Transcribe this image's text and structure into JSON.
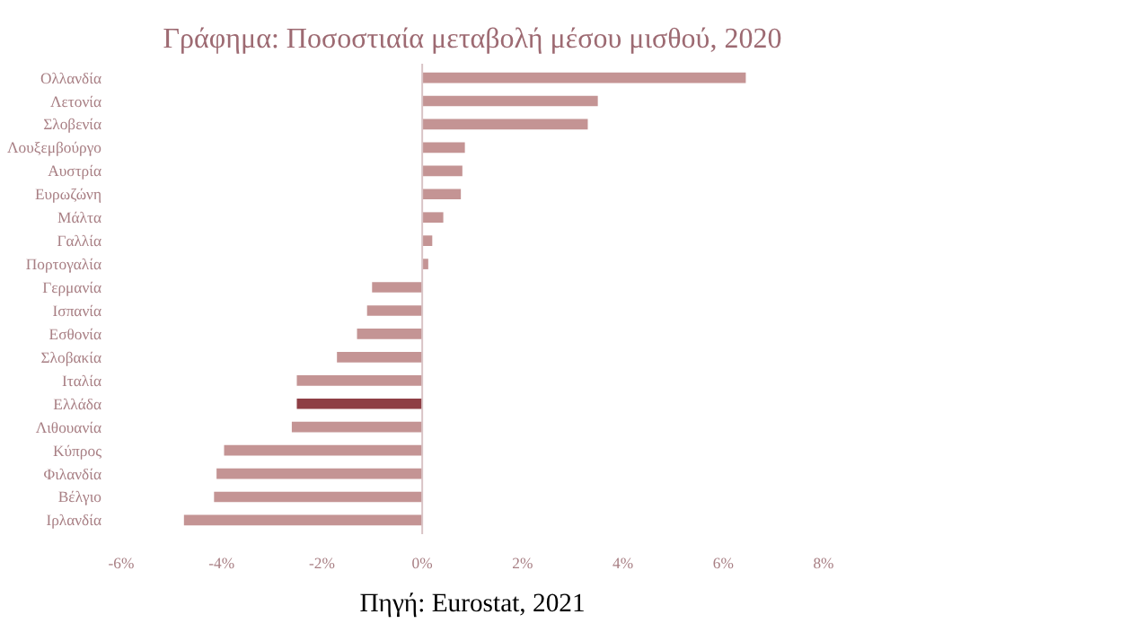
{
  "chart_data": {
    "type": "bar",
    "orientation": "horizontal",
    "title": "Γράφημα: Ποσοστιαία μεταβολή μέσου μισθού, 2020",
    "categories": [
      "Ολλανδία",
      "Λετονία",
      "Σλοβενία",
      "Λουξεμβούργο",
      "Αυστρία",
      "Ευρωζώνη",
      "Μάλτα",
      "Γαλλία",
      "Πορτογαλία",
      "Γερμανία",
      "Ισπανία",
      "Εσθονία",
      "Σλοβακία",
      "Ιταλία",
      "Ελλάδα",
      "Λιθουανία",
      "Κύπρος",
      "Φιλανδία",
      "Βέλγιο",
      "Ιρλανδία"
    ],
    "values": [
      6.45,
      3.5,
      3.3,
      0.85,
      0.8,
      0.77,
      0.42,
      0.2,
      0.12,
      -1.0,
      -1.1,
      -1.3,
      -1.7,
      -2.5,
      -2.5,
      -2.6,
      -3.95,
      -4.1,
      -4.15,
      -4.75
    ],
    "colors": [
      "#c49494",
      "#c49494",
      "#c49494",
      "#c49494",
      "#c49494",
      "#c49494",
      "#c49494",
      "#c49494",
      "#c49494",
      "#c49494",
      "#c49494",
      "#c49494",
      "#c49494",
      "#c49494",
      "#8e3e44",
      "#c49494",
      "#c49494",
      "#c49494",
      "#c49494",
      "#c49494"
    ],
    "xlim": [
      -6,
      8
    ],
    "xticks": [
      {
        "value": -6,
        "label": "-6%"
      },
      {
        "value": -4,
        "label": "-4%"
      },
      {
        "value": -2,
        "label": "-2%"
      },
      {
        "value": 0,
        "label": "0%"
      },
      {
        "value": 2,
        "label": "2%"
      },
      {
        "value": 4,
        "label": "4%"
      },
      {
        "value": 6,
        "label": "6%"
      },
      {
        "value": 8,
        "label": "8%"
      }
    ],
    "annotations": [
      "Πηγή: Eurostat, 2021"
    ]
  }
}
